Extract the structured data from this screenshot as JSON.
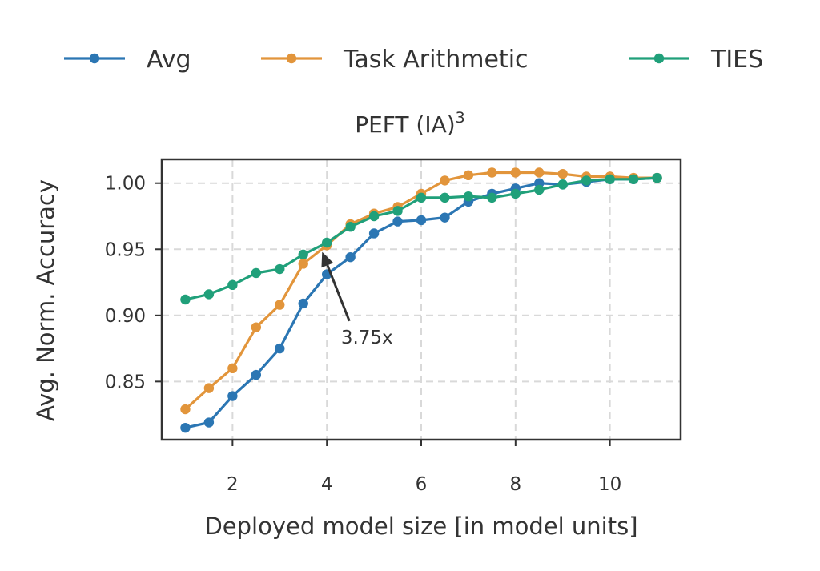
{
  "chart_data": {
    "type": "line",
    "title_main": "PEFT (IA)",
    "title_sup": "3",
    "xlabel": "Deployed model size [in model units]",
    "ylabel": "Avg. Norm. Accuracy",
    "xlim": [
      0.5,
      11.5
    ],
    "ylim": [
      0.806,
      1.018
    ],
    "xticks": [
      2,
      4,
      6,
      8,
      10
    ],
    "yticks": [
      0.85,
      0.9,
      0.95,
      1.0
    ],
    "xtick_labels": [
      "2",
      "4",
      "6",
      "8",
      "10"
    ],
    "ytick_labels": [
      "0.85",
      "0.90",
      "0.95",
      "1.00"
    ],
    "grid": true,
    "legend_position": "top",
    "x": [
      1,
      1.5,
      2,
      2.5,
      3,
      3.5,
      4,
      4.5,
      5,
      5.5,
      6,
      6.5,
      7,
      7.5,
      8,
      8.5,
      9,
      9.5,
      10,
      10.5,
      11
    ],
    "series": [
      {
        "name": "Avg",
        "color": "#2b76b3",
        "values": [
          0.815,
          0.819,
          0.839,
          0.855,
          0.875,
          0.909,
          0.931,
          0.944,
          0.962,
          0.971,
          0.972,
          0.974,
          0.986,
          0.992,
          0.996,
          1.0,
          0.999,
          1.001,
          1.003,
          1.003,
          1.004
        ]
      },
      {
        "name": "Task Arithmetic",
        "color": "#e2953b",
        "values": [
          0.829,
          0.845,
          0.86,
          0.891,
          0.908,
          0.939,
          0.953,
          0.969,
          0.977,
          0.982,
          0.992,
          1.002,
          1.006,
          1.008,
          1.008,
          1.008,
          1.007,
          1.005,
          1.005,
          1.004,
          1.004
        ]
      },
      {
        "name": "TIES",
        "color": "#20a07a",
        "values": [
          0.912,
          0.916,
          0.923,
          0.932,
          0.935,
          0.946,
          0.955,
          0.967,
          0.975,
          0.979,
          0.989,
          0.989,
          0.99,
          0.989,
          0.992,
          0.995,
          0.999,
          1.002,
          1.003,
          1.003,
          1.004
        ]
      }
    ],
    "annotation": {
      "text": "3.75x",
      "xy": [
        3.9,
        0.948
      ],
      "xytext": [
        4.85,
        0.88
      ]
    }
  }
}
